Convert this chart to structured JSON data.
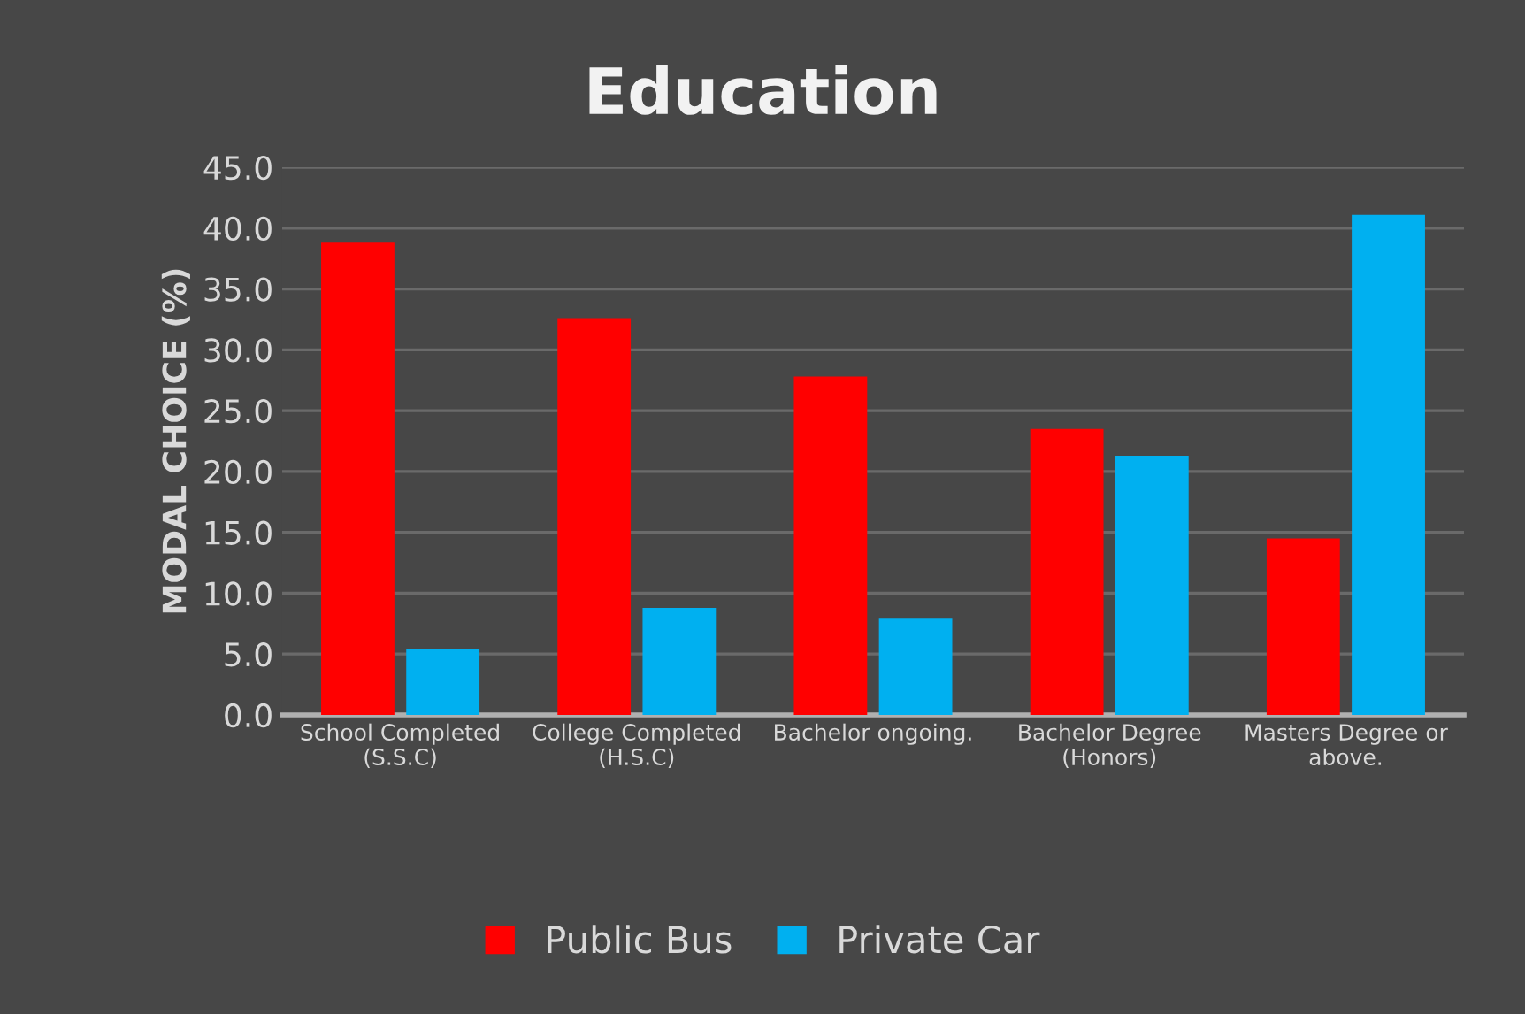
{
  "chart_data": {
    "type": "bar",
    "title": "Education",
    "ylabel": "MODAL CHOICE (%)",
    "categories": [
      "School Completed\n(S.S.C)",
      "College Completed\n(H.S.C)",
      "Bachelor ongoing.",
      "Bachelor Degree\n(Honors)",
      "Masters Degree or\nabove."
    ],
    "series": [
      {
        "name": "Public Bus",
        "color": "#ff0000",
        "values": [
          38.8,
          32.6,
          27.8,
          23.5,
          14.5
        ]
      },
      {
        "name": "Private Car",
        "color": "#00b0f0",
        "values": [
          5.4,
          8.8,
          7.9,
          21.3,
          41.1
        ]
      }
    ],
    "ylim": [
      0,
      45
    ],
    "yticks": [
      {
        "value": 0,
        "label": "0.0"
      },
      {
        "value": 5,
        "label": "5.0"
      },
      {
        "value": 10,
        "label": "10.0"
      },
      {
        "value": 15,
        "label": "15.0"
      },
      {
        "value": 20,
        "label": "20.0"
      },
      {
        "value": 25,
        "label": "25.0"
      },
      {
        "value": 30,
        "label": "30.0"
      },
      {
        "value": 35,
        "label": "35.0"
      },
      {
        "value": 40,
        "label": "40.0"
      },
      {
        "value": 45,
        "label": "45.0"
      }
    ],
    "grid": "y",
    "legend": "bottom"
  }
}
